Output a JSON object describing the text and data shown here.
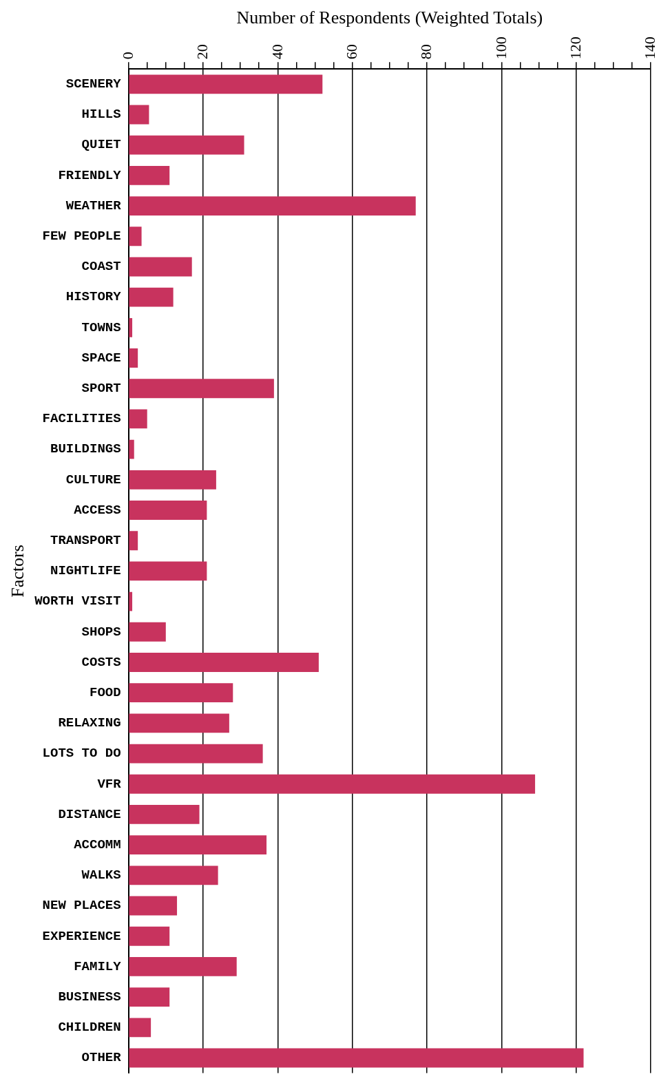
{
  "chart_data": {
    "type": "bar",
    "orientation": "horizontal",
    "xlabel": "Number of Respondents (Weighted Totals)",
    "ylabel": "Factors",
    "categories": [
      "SCENERY",
      "HILLS",
      "QUIET",
      "FRIENDLY",
      "WEATHER",
      "FEW PEOPLE",
      "COAST",
      "HISTORY",
      "TOWNS",
      "SPACE",
      "SPORT",
      "FACILITIES",
      "BUILDINGS",
      "CULTURE",
      "ACCESS",
      "TRANSPORT",
      "NIGHTLIFE",
      "WORTH VISIT",
      "SHOPS",
      "COSTS",
      "FOOD",
      "RELAXING",
      "LOTS TO DO",
      "VFR",
      "DISTANCE",
      "ACCOMM",
      "WALKS",
      "NEW PLACES",
      "EXPERIENCE",
      "FAMILY",
      "BUSINESS",
      "CHILDREN",
      "OTHER"
    ],
    "values": [
      52,
      5.5,
      31,
      11,
      77,
      3.5,
      17,
      12,
      1,
      2.5,
      39,
      5,
      1.5,
      23.5,
      21,
      2.5,
      21,
      1,
      10,
      51,
      28,
      27,
      36,
      109,
      19,
      37,
      24,
      13,
      11,
      29,
      11,
      6,
      122
    ],
    "color": "#c8335e",
    "xlim": [
      0,
      140
    ],
    "xticks": [
      0,
      {
        "value": 5,
        "label": null
      },
      {
        "value": 10,
        "label": null
      },
      {
        "value": 15,
        "label": null
      },
      20,
      {
        "value": 25,
        "label": null
      },
      {
        "value": 30,
        "label": null
      },
      {
        "value": 35,
        "label": null
      },
      40,
      {
        "value": 45,
        "label": null
      },
      {
        "value": 50,
        "label": null
      },
      {
        "value": 55,
        "label": null
      },
      60,
      {
        "value": 65,
        "label": null
      },
      {
        "value": 70,
        "label": null
      },
      {
        "value": 75,
        "label": null
      },
      80,
      {
        "value": 85,
        "label": null
      },
      {
        "value": 90,
        "label": null
      },
      {
        "value": 95,
        "label": null
      },
      100,
      {
        "value": 105,
        "label": null
      },
      {
        "value": 110,
        "label": null
      },
      {
        "value": 115,
        "label": null
      },
      120,
      {
        "value": 125,
        "label": null
      },
      {
        "value": 130,
        "label": null
      },
      {
        "value": 135,
        "label": null
      },
      140
    ],
    "grid": "x",
    "legend": false
  }
}
